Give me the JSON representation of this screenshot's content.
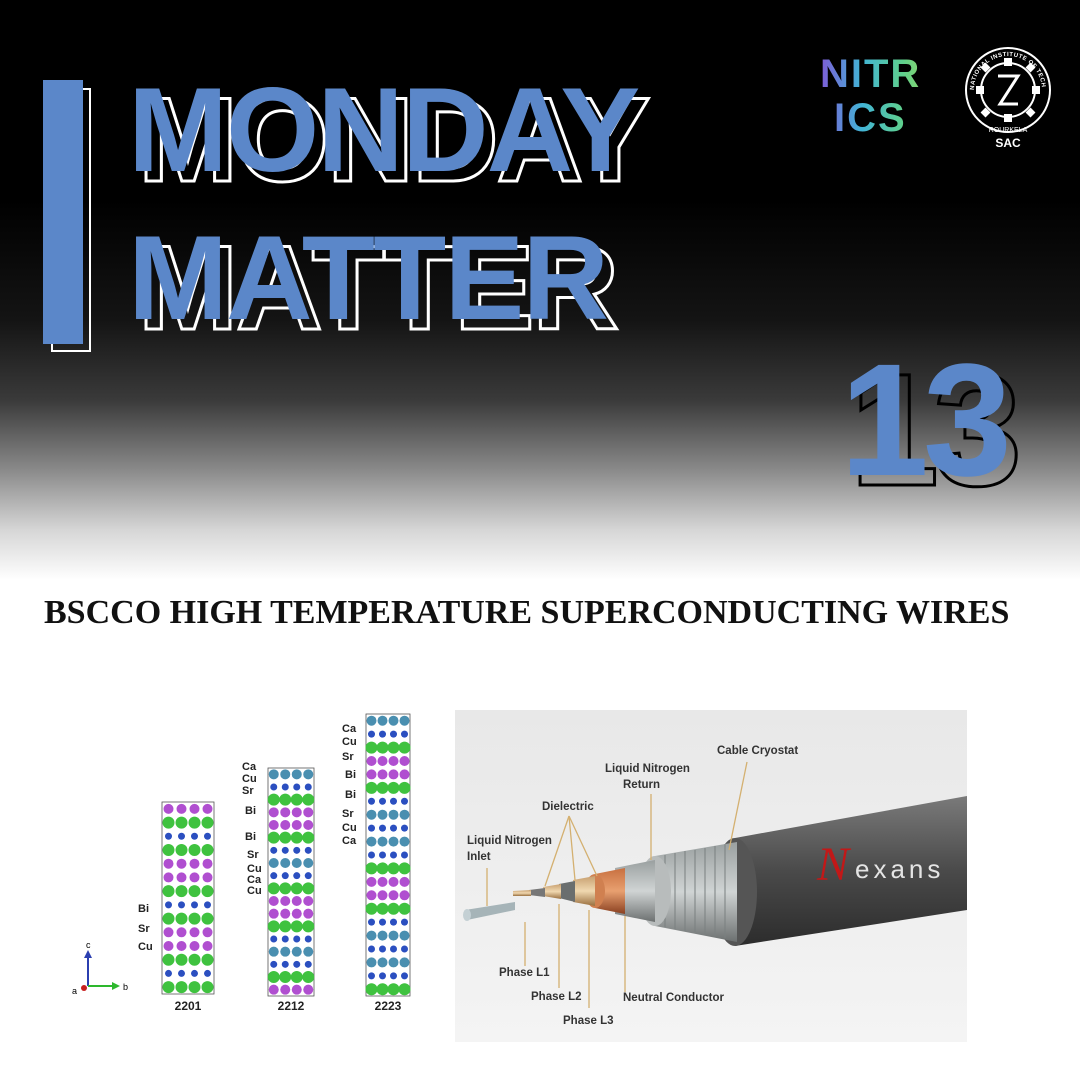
{
  "header": {
    "title_line1": "MONDAY",
    "title_line2": "MATTER",
    "issue_number": "13"
  },
  "logos": {
    "nitr_line1": "NITR",
    "nitr_line2": "ICS",
    "institute_ring_text": "NATIONAL INSTITUTE OF TECHNOLOGY",
    "institute_city": "ROURKELA",
    "institute_label": "SAC"
  },
  "headline": "BSCCO  HIGH TEMPERATURE SUPERCONDUCTING WIRES",
  "crystal_figure": {
    "structures": [
      {
        "name": "2201",
        "labels": [
          "Bi",
          "Sr",
          "Cu"
        ]
      },
      {
        "name": "2212",
        "labels": [
          "Ca",
          "Cu",
          "Sr",
          "Bi",
          "Bi",
          "Sr",
          "Cu",
          "Ca",
          "Cu"
        ]
      },
      {
        "name": "2223",
        "labels": [
          "Ca",
          "Cu",
          "Sr",
          "Bi",
          "Bi",
          "Sr",
          "Cu",
          "Ca"
        ]
      }
    ],
    "axes": {
      "c": "c",
      "a": "a",
      "b": "b"
    }
  },
  "cable_figure": {
    "brand": "exans",
    "brand_initial": "N",
    "labels": {
      "cable_cryostat": "Cable Cryostat",
      "ln_return_1": "Liquid Nitrogen",
      "ln_return_2": "Return",
      "dielectric": "Dielectric",
      "ln_inlet_1": "Liquid Nitrogen",
      "ln_inlet_2": "Inlet",
      "phase_l1": "Phase L1",
      "phase_l2": "Phase L2",
      "phase_l3": "Phase L3",
      "neutral": "Neutral Conductor"
    }
  },
  "colors": {
    "accent_blue": "#5b87c9",
    "bismuth_purple": "#b04fd0",
    "strontium_green": "#3fc23f",
    "copper_blue": "#2b4fc0",
    "calcium_teal": "#4a8fb0"
  }
}
